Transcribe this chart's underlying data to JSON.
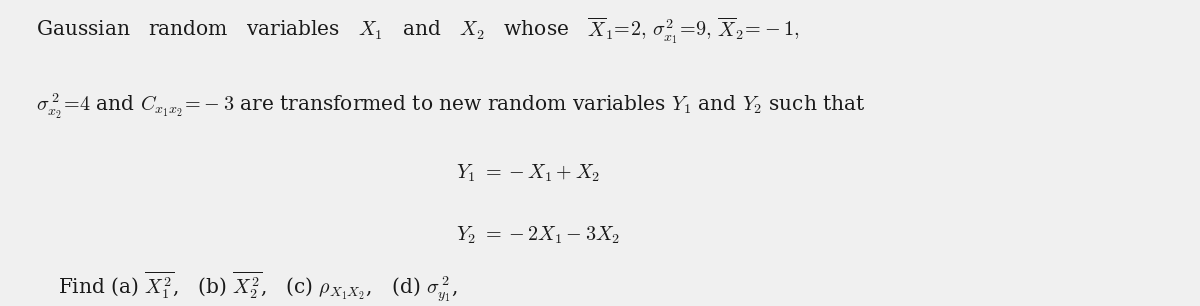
{
  "bg_color": "#f0f0f0",
  "text_color": "#1a1a1a",
  "figsize": [
    12.0,
    3.06
  ],
  "dpi": 100,
  "fontsize": 14.5,
  "eq_fontsize": 14.5
}
